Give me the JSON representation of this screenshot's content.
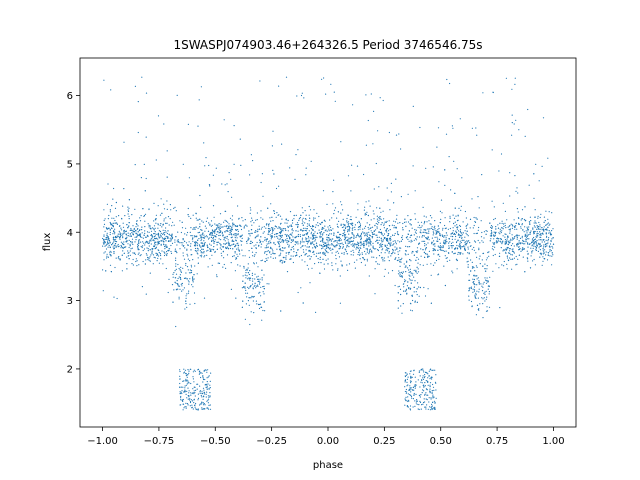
{
  "chart_data": {
    "type": "scatter",
    "title": "1SWASPJ074903.46+264326.5 Period 3746546.75s",
    "xlabel": "phase",
    "ylabel": "flux",
    "xlim": [
      -1.1,
      1.1
    ],
    "ylim": [
      1.15,
      6.55
    ],
    "xticks": [
      -1.0,
      -0.75,
      -0.5,
      -0.25,
      0.0,
      0.25,
      0.5,
      0.75,
      1.0
    ],
    "xtick_labels": [
      "−1.00",
      "−0.75",
      "−0.50",
      "−0.25",
      "0.00",
      "0.25",
      "0.50",
      "0.75",
      "1.00"
    ],
    "yticks": [
      2,
      3,
      4,
      5,
      6
    ],
    "ytick_labels": [
      "2",
      "3",
      "4",
      "5",
      "6"
    ],
    "marker_color": "#1f77b4",
    "grid": false,
    "description_points": "dense band of points near flux 3.9 across phase -1 to 1, with dips near phases -0.65, -0.33, 0.35, 0.67 and sparse outliers",
    "series": [
      {
        "values_summary": {
          "baseline_flux": 3.9,
          "baseline_spread": 0.18,
          "dips": [
            {
              "phase": -0.64,
              "flux": 3.3
            },
            {
              "phase": -0.33,
              "flux": 3.2
            },
            {
              "phase": 0.36,
              "flux": 3.3
            },
            {
              "phase": 0.67,
              "flux": 3.2
            }
          ],
          "deep_points": [
            {
              "phase_range": [
                -0.66,
                -0.52
              ],
              "flux_range": [
                1.4,
                2.0
              ]
            },
            {
              "phase_range": [
                0.34,
                0.48
              ],
              "flux_range": [
                1.4,
                2.0
              ]
            }
          ]
        }
      }
    ]
  }
}
